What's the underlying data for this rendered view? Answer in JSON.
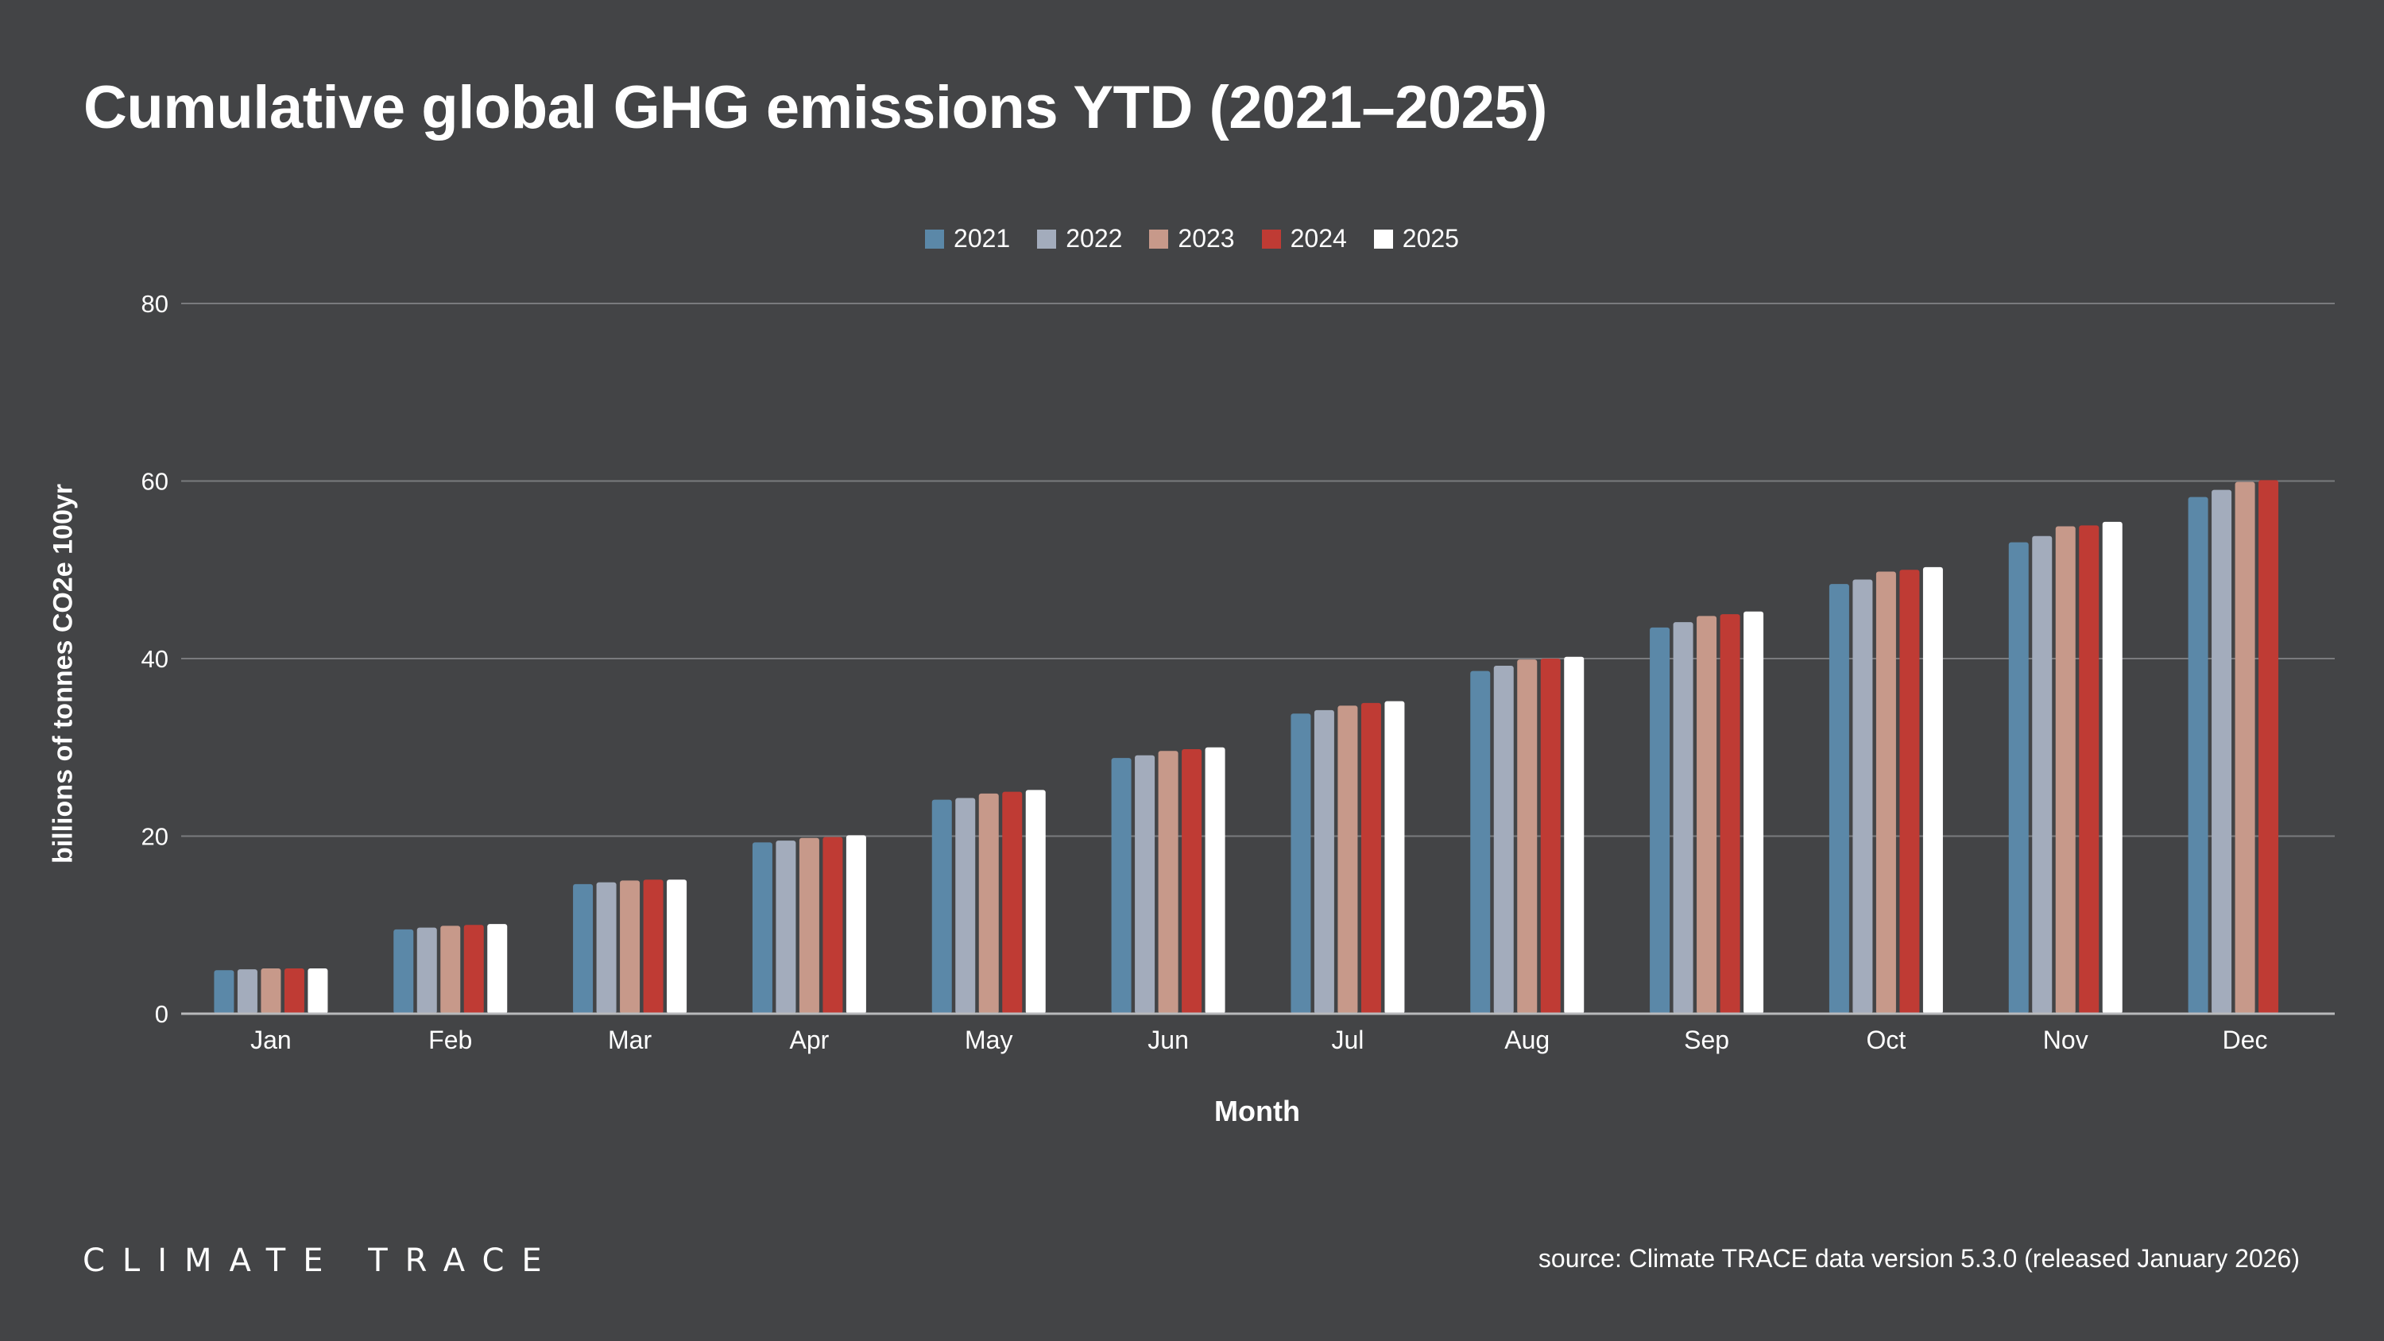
{
  "title": "Cumulative global GHG emissions YTD (2021–2025)",
  "logo": "CLIMATE TRACE",
  "source": "source: Climate TRACE data version 5.3.0 (released January 2026)",
  "chart_data": {
    "type": "bar",
    "title": "Cumulative global GHG emissions YTD (2021–2025)",
    "xlabel": "Month",
    "ylabel": "billions of tonnes CO2e 100yr",
    "ylim": [
      0,
      80
    ],
    "yticks": [
      0,
      20,
      40,
      60,
      80
    ],
    "grid": true,
    "legend_position": "top-center",
    "categories": [
      "Jan",
      "Feb",
      "Mar",
      "Apr",
      "May",
      "Jun",
      "Jul",
      "Aug",
      "Sep",
      "Oct",
      "Nov",
      "Dec"
    ],
    "series": [
      {
        "name": "2021",
        "color": "#5b88a8",
        "values": [
          4.9,
          9.5,
          14.6,
          19.3,
          24.1,
          28.8,
          33.8,
          38.6,
          43.5,
          48.4,
          53.1,
          58.2
        ]
      },
      {
        "name": "2022",
        "color": "#a3acbc",
        "values": [
          5.0,
          9.7,
          14.8,
          19.5,
          24.3,
          29.1,
          34.2,
          39.2,
          44.1,
          48.9,
          53.8,
          59.0
        ]
      },
      {
        "name": "2023",
        "color": "#c7998a",
        "values": [
          5.1,
          9.9,
          15.0,
          19.8,
          24.8,
          29.6,
          34.7,
          39.9,
          44.8,
          49.8,
          54.9,
          59.9
        ]
      },
      {
        "name": "2024",
        "color": "#bf3b34",
        "values": [
          5.1,
          10.0,
          15.1,
          19.9,
          25.0,
          29.8,
          35.0,
          40.0,
          45.0,
          50.0,
          55.0,
          60.1
        ]
      },
      {
        "name": "2025",
        "color": "#ffffff",
        "values": [
          5.1,
          10.1,
          15.1,
          20.1,
          25.2,
          30.0,
          35.2,
          40.2,
          45.3,
          50.3,
          55.4,
          null
        ]
      }
    ]
  }
}
